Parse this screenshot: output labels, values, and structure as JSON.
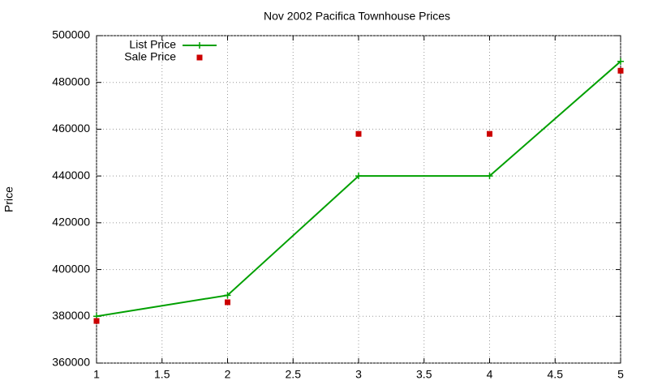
{
  "chart_data": {
    "type": "line",
    "title": "Nov 2002 Pacifica Townhouse Prices",
    "y_label": "Price",
    "x": [
      1,
      2,
      3,
      4,
      5
    ],
    "series": [
      {
        "name": "List Price",
        "color": "#00a000",
        "mode": "linespoints",
        "values": [
          380000,
          389000,
          440000,
          440000,
          489000
        ]
      },
      {
        "name": "Sale Price",
        "color": "#cc0000",
        "mode": "points",
        "values": [
          378000,
          386000,
          458000,
          458000,
          485000
        ]
      }
    ],
    "xlim": [
      1,
      5
    ],
    "xticks": [
      1,
      1.5,
      2,
      2.5,
      3,
      3.5,
      4,
      4.5,
      5
    ],
    "ylim": [
      360000,
      500000
    ],
    "yticks": [
      360000,
      380000,
      400000,
      420000,
      440000,
      460000,
      480000,
      500000
    ],
    "grid": true,
    "legend": "top-left"
  }
}
